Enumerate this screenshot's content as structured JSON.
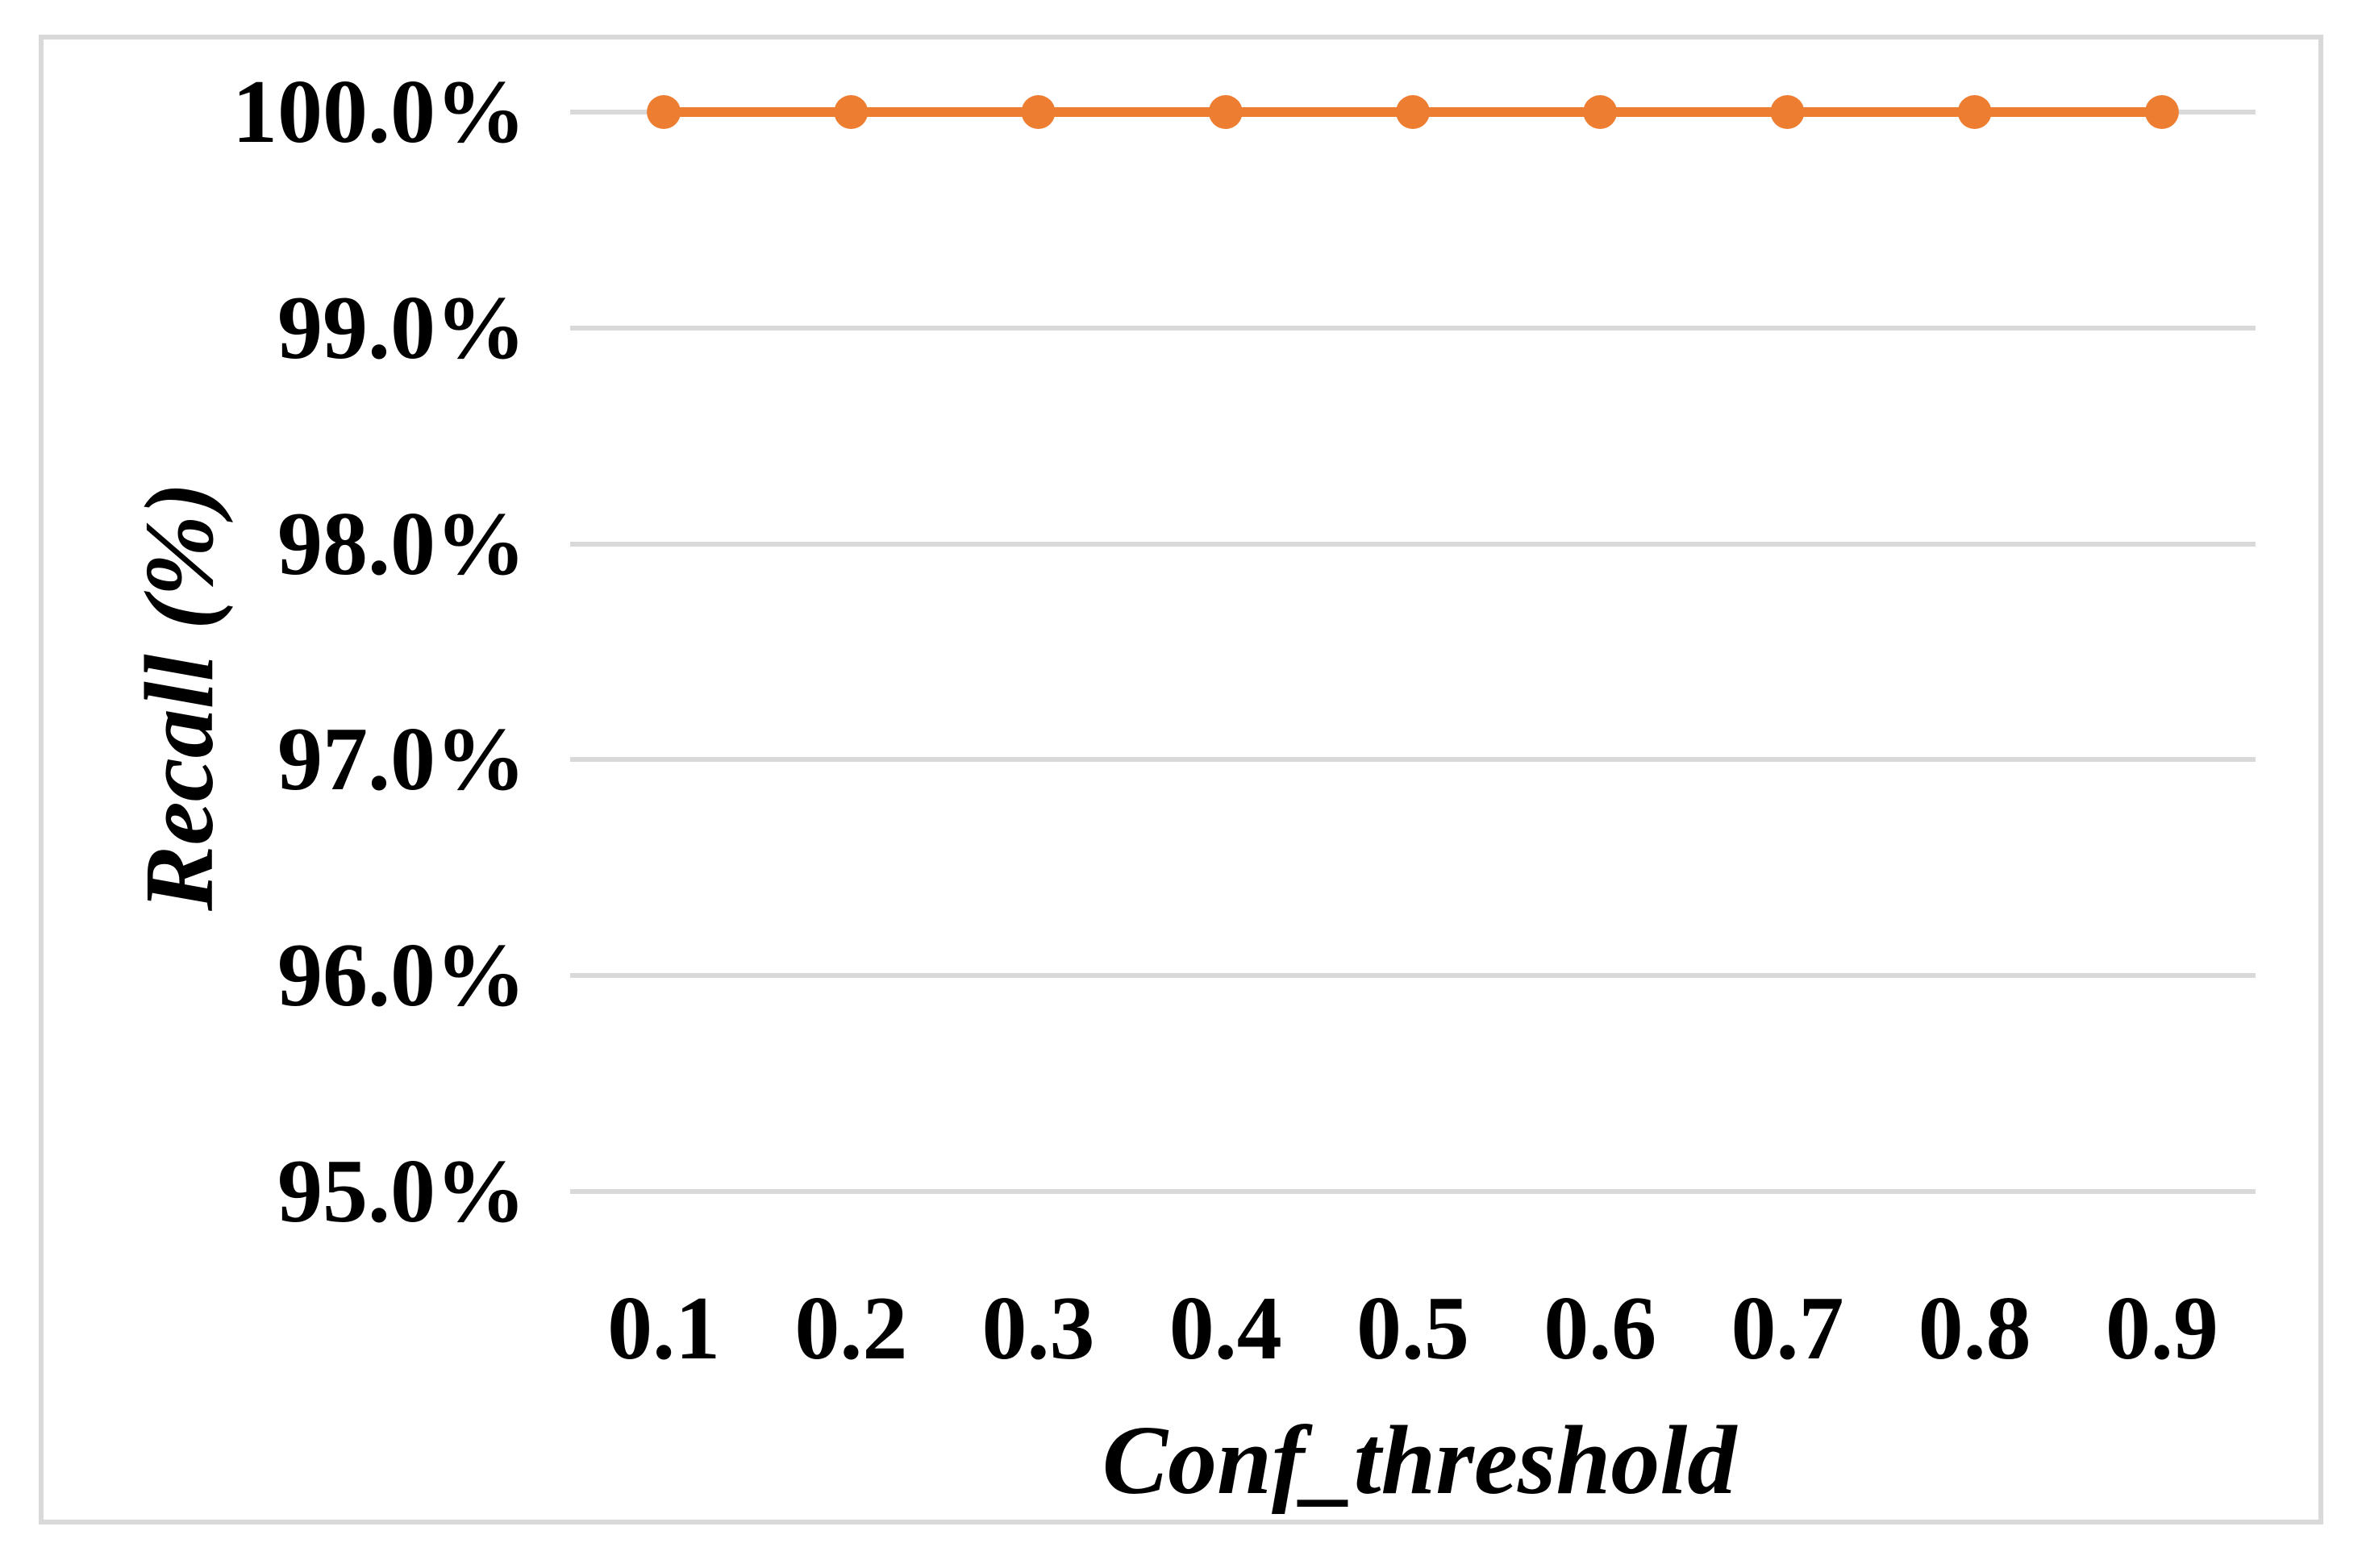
{
  "chart_data": {
    "type": "line",
    "title": "",
    "categories": [
      "0.1",
      "0.2",
      "0.3",
      "0.4",
      "0.5",
      "0.6",
      "0.7",
      "0.8",
      "0.9"
    ],
    "x": [
      0.1,
      0.2,
      0.3,
      0.4,
      0.5,
      0.6,
      0.7,
      0.8,
      0.9
    ],
    "series": [
      {
        "name": "Recall",
        "values": [
          100.0,
          100.0,
          100.0,
          100.0,
          100.0,
          100.0,
          100.0,
          100.0,
          100.0
        ]
      }
    ],
    "xlabel": "Conf_threshold",
    "ylabel": "Recall (%)",
    "ylim": [
      95.0,
      100.0
    ],
    "ytick_step": 1.0,
    "ytick_labels": [
      "95.0%",
      "96.0%",
      "97.0%",
      "98.0%",
      "99.0%",
      "100.0%"
    ],
    "grid": "horizontal-only",
    "legend_position": "none",
    "line_color": "#ED7D31",
    "marker_shape": "circle",
    "gridline_color": "#D9D9D9",
    "frame_color": "#D9D9D9",
    "text_color": "#000000",
    "background_color": "#FFFFFF"
  }
}
